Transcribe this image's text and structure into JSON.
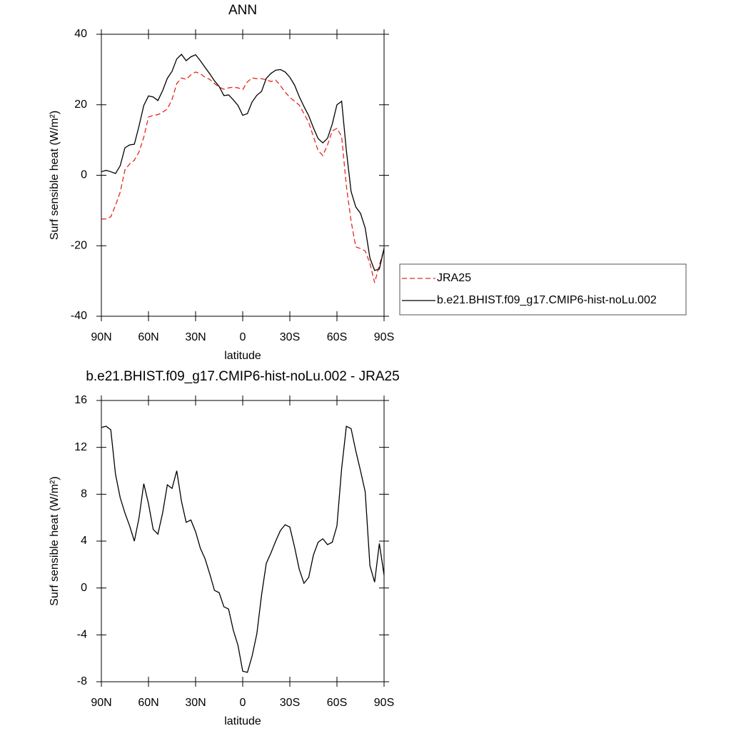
{
  "chart_data": [
    {
      "type": "line",
      "title": "ANN",
      "xlabel": "latitude",
      "ylabel": "Surf sensible heat (W/m²)",
      "x": [
        90,
        87,
        84,
        81,
        78,
        75,
        72,
        69,
        66,
        63,
        60,
        57,
        54,
        51,
        48,
        45,
        42,
        39,
        36,
        33,
        30,
        27,
        24,
        21,
        18,
        15,
        12,
        9,
        6,
        3,
        0,
        -3,
        -6,
        -9,
        -12,
        -15,
        -18,
        -21,
        -24,
        -27,
        -30,
        -33,
        -36,
        -39,
        -42,
        -45,
        -48,
        -51,
        -54,
        -57,
        -60,
        -63,
        -66,
        -69,
        -72,
        -75,
        -78,
        -81,
        -84,
        -87,
        -90
      ],
      "series": [
        {
          "name": "JRA25",
          "color": "#e8261e",
          "dashed": true,
          "values": [
            -12.4,
            -12.4,
            -11.8,
            -8.5,
            -4.8,
            1.5,
            3.2,
            4.3,
            6.6,
            10.8,
            16.5,
            17,
            17.2,
            17.9,
            18.8,
            21.5,
            26,
            27.6,
            27.2,
            28.5,
            29.3,
            28.8,
            27.8,
            27.2,
            26,
            25,
            24.4,
            24.8,
            25,
            24.8,
            24.3,
            26.5,
            27.6,
            27.4,
            27.4,
            27.1,
            26.6,
            27,
            25.4,
            23.6,
            22.1,
            21,
            19.9,
            17.5,
            15,
            11,
            7,
            5.6,
            8.6,
            12.6,
            13.3,
            11,
            -3,
            -13,
            -20.3,
            -20.8,
            -21.5,
            -25,
            -30.5,
            -25.5,
            -21
          ]
        },
        {
          "name": "b.e21.BHIST.f09_g17.CMIP6-hist-noLu.002",
          "color": "#000000",
          "dashed": false,
          "values": [
            1.0,
            1.4,
            1.0,
            0.5,
            2.7,
            7.8,
            8.6,
            8.8,
            14,
            19.8,
            22.5,
            22.2,
            21.2,
            24,
            27.5,
            29.5,
            33,
            34.3,
            32.5,
            33.6,
            34.2,
            32.5,
            30.6,
            28.8,
            26.8,
            25.2,
            22.6,
            22.8,
            21.4,
            19.8,
            17,
            17.5,
            20.8,
            22.7,
            23.8,
            27.5,
            28.9,
            29.8,
            30,
            29.3,
            27.8,
            25.6,
            22.3,
            19.5,
            16.9,
            13.5,
            10.4,
            9.2,
            10.5,
            14.5,
            20,
            21,
            7,
            -4.6,
            -9,
            -10.8,
            -15,
            -23.5,
            -27,
            -26.6,
            -20.7
          ]
        }
      ],
      "xlim": [
        90,
        -90
      ],
      "xticks": [
        {
          "value": 90,
          "label": "90N"
        },
        {
          "value": 60,
          "label": "60N"
        },
        {
          "value": 30,
          "label": "30N"
        },
        0,
        {
          "value": -30,
          "label": "30S"
        },
        {
          "value": -60,
          "label": "60S"
        },
        {
          "value": -90,
          "label": "90S"
        }
      ],
      "ylim": [
        -40,
        40
      ],
      "yticks": [
        40,
        20,
        0,
        -20,
        -40
      ],
      "legend": "right"
    },
    {
      "type": "line",
      "title": "b.e21.BHIST.f09_g17.CMIP6-hist-noLu.002 - JRA25",
      "xlabel": "latitude",
      "ylabel": "Surf sensible heat (W/m²)",
      "x": [
        90,
        87,
        84,
        81,
        78,
        75,
        72,
        69,
        66,
        63,
        60,
        57,
        54,
        51,
        48,
        45,
        42,
        39,
        36,
        33,
        30,
        27,
        24,
        21,
        18,
        15,
        12,
        9,
        6,
        3,
        0,
        -3,
        -6,
        -9,
        -12,
        -15,
        -18,
        -21,
        -24,
        -27,
        -30,
        -33,
        -36,
        -39,
        -42,
        -45,
        -48,
        -51,
        -54,
        -57,
        -60,
        -63,
        -66,
        -69,
        -72,
        -75,
        -78,
        -81,
        -84,
        -87,
        -90
      ],
      "values": [
        13.7,
        13.8,
        13.5,
        9.7,
        7.7,
        6.4,
        5.3,
        4,
        6,
        8.9,
        7.2,
        5,
        4.6,
        6.4,
        8.8,
        8.5,
        10,
        7.4,
        5.6,
        5.8,
        4.8,
        3.4,
        2.5,
        1.2,
        -0.2,
        -0.4,
        -1.6,
        -1.8,
        -3.6,
        -4.9,
        -7.1,
        -7.2,
        -5.8,
        -3.9,
        -0.6,
        2.1,
        3,
        4,
        4.9,
        5.4,
        5.2,
        3.5,
        1.6,
        0.4,
        0.9,
        2.8,
        3.9,
        4.2,
        3.7,
        3.9,
        5.3,
        10.2,
        13.8,
        13.6,
        11.7,
        10,
        8.2,
        1.9,
        0.5,
        3.8,
        1.1
      ],
      "color": "#000000",
      "xlim": [
        90,
        -90
      ],
      "xticks": [
        {
          "value": 90,
          "label": "90N"
        },
        {
          "value": 60,
          "label": "60N"
        },
        {
          "value": 30,
          "label": "30N"
        },
        0,
        {
          "value": -30,
          "label": "30S"
        },
        {
          "value": -60,
          "label": "60S"
        },
        {
          "value": -90,
          "label": "90S"
        }
      ],
      "ylim": [
        -8,
        16
      ],
      "yticks": [
        16,
        12,
        8,
        4,
        0,
        -4,
        -8
      ]
    }
  ]
}
